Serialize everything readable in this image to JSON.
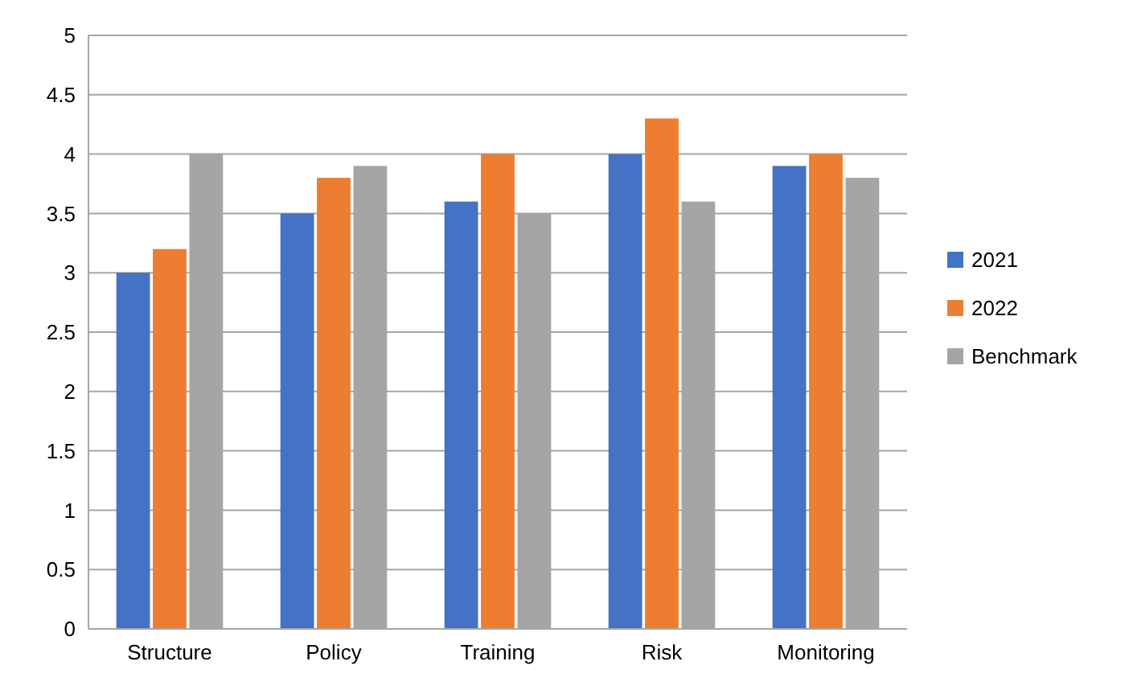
{
  "chart_data": {
    "type": "bar",
    "categories": [
      "Structure",
      "Policy",
      "Training",
      "Risk",
      "Monitoring"
    ],
    "series": [
      {
        "name": "2021",
        "color": "#4472c4",
        "values": [
          3,
          3.5,
          3.6,
          4,
          3.9
        ]
      },
      {
        "name": "2022",
        "color": "#ed7d31",
        "values": [
          3.2,
          3.8,
          4,
          4.3,
          4
        ]
      },
      {
        "name": "Benchmark",
        "color": "#a5a5a5",
        "values": [
          4,
          3.9,
          3.5,
          3.6,
          3.8
        ]
      }
    ],
    "ylim": [
      0,
      5
    ],
    "yticks": [
      0,
      0.5,
      1,
      1.5,
      2,
      2.5,
      3,
      3.5,
      4,
      4.5,
      5
    ],
    "grid": "y",
    "legend": "right"
  }
}
